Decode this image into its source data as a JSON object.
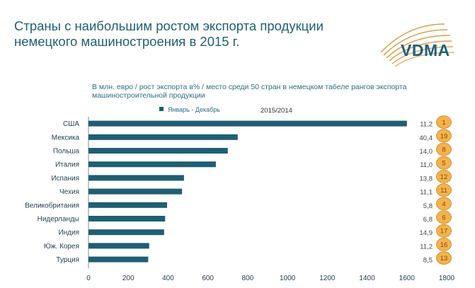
{
  "header": {
    "title_line1": "Страны с наибольшим ростом экспорта продукции",
    "title_line2": "немецкого машиностроения в 2015 г.",
    "logo_text": "VDMA"
  },
  "subtitle": "В  млн. евро / рост экспорта в% / место среди 50 стран в немецком табеле рангов экспорта машиностроительной продукции",
  "legend": {
    "label": "Январь - Декабрь"
  },
  "period": "2015/2014",
  "colors": {
    "bar": "#1f5f73",
    "title": "#1f5f73",
    "rank_fill": "#f3b24c",
    "rank_stroke": "#c9862a",
    "logo_arc": "#d9a24e"
  },
  "chart_data": {
    "type": "bar",
    "orientation": "horizontal",
    "categories": [
      "США",
      "Мексика",
      "Польша",
      "Италия",
      "Испания",
      "Чехия",
      "Великобритания",
      "Нидерланды",
      "Индия",
      "Юж. Корея",
      "Турция"
    ],
    "values": [
      1600,
      750,
      700,
      640,
      480,
      470,
      395,
      385,
      380,
      305,
      300
    ],
    "growth_labels": [
      "11,2",
      "40,4",
      "14,0",
      "11,0",
      "13,8",
      "11,1",
      "5,8",
      "6,8",
      "14,9",
      "11,2",
      "8,5"
    ],
    "ranks": [
      "1",
      "19",
      "8",
      "5",
      "12",
      "11",
      "4",
      "6",
      "17",
      "16",
      "13"
    ],
    "xlim": [
      0,
      1800
    ],
    "xticks": [
      "0",
      "200",
      "400",
      "600",
      "800",
      "1000",
      "1200",
      "1400",
      "1600",
      "1800"
    ],
    "xtick_values": [
      0,
      200,
      400,
      600,
      800,
      1000,
      1200,
      1400,
      1600,
      1800
    ],
    "grid": false,
    "legend_position": "top"
  }
}
